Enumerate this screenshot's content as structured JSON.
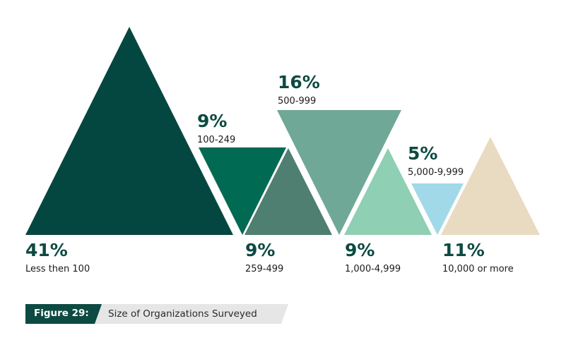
{
  "chart_data": {
    "type": "bar",
    "categories": [
      "Less then 100",
      "100-249",
      "259-499",
      "500-999",
      "1,000-4,999",
      "5,000-9,999",
      "10,000 or more"
    ],
    "values": [
      41,
      9,
      9,
      16,
      9,
      5,
      11
    ],
    "value_labels": [
      "41%",
      "9%",
      "9%",
      "16%",
      "9%",
      "5%",
      "11%"
    ],
    "colors": [
      "#044740",
      "#006a53",
      "#4e7f70",
      "#70a898",
      "#8fcfb4",
      "#a1d9e8",
      "#e8dbc1"
    ],
    "orientation": [
      "up",
      "down",
      "up",
      "down",
      "up",
      "down",
      "up"
    ],
    "grid": false,
    "legend": "none"
  },
  "caption": {
    "label": "Figure 29:",
    "title": "Size of Organizations Surveyed",
    "label_color": "#0c4a42",
    "title_bg_color": "#e6e6e6"
  }
}
